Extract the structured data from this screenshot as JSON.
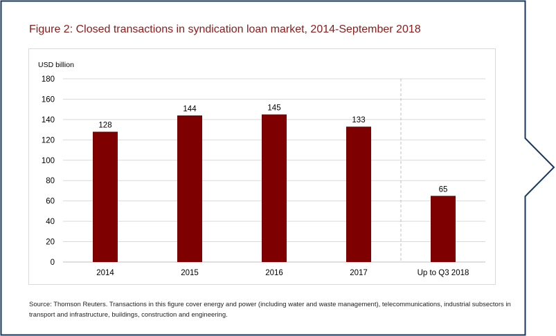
{
  "title": "Figure 2: Closed transactions in syndication loan market, 2014-September 2018",
  "source": "Source: Thomson Reuters. Transactions in this figure cover energy and power (including water and waste management), telecommunications, industrial subsectors in transport and infrastructure, buildings, construction and engineering.",
  "colors": {
    "bar": "#7f0000",
    "title": "#8b1a1a",
    "frame": "#17375e",
    "grid": "#d9d9d9"
  },
  "chart_data": {
    "type": "bar",
    "title": "",
    "ylabel": "USD billion",
    "xlabel": "",
    "categories": [
      "2014",
      "2015",
      "2016",
      "2017",
      "Up to Q3 2018"
    ],
    "values": [
      128,
      144,
      145,
      133,
      65
    ],
    "data_labels": [
      "128",
      "144",
      "145",
      "133",
      "65"
    ],
    "ylim": [
      0,
      180
    ],
    "yticks": [
      0,
      20,
      40,
      60,
      80,
      100,
      120,
      140,
      160,
      180
    ],
    "grid": true,
    "divider_before_category": "Up to Q3 2018"
  }
}
